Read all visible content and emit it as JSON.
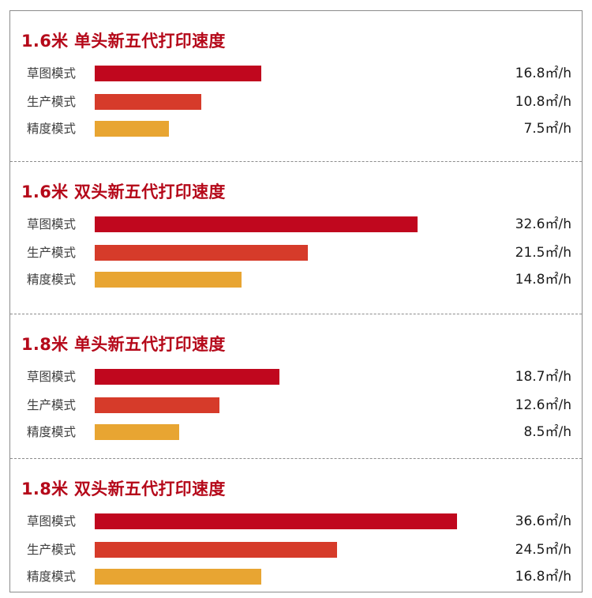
{
  "chart_data": [
    {
      "type": "bar",
      "orientation": "horizontal",
      "title": "1.6米 单头新五代打印速度",
      "categories": [
        "草图模式",
        "生产模式",
        "精度模式"
      ],
      "values": [
        16.8,
        10.8,
        7.5
      ],
      "value_labels": [
        "16.8㎡/h",
        "10.8㎡/h",
        "7.5㎡/h"
      ],
      "unit": "㎡/h"
    },
    {
      "type": "bar",
      "orientation": "horizontal",
      "title": "1.6米 双头新五代打印速度",
      "categories": [
        "草图模式",
        "生产模式",
        "精度模式"
      ],
      "values": [
        32.6,
        21.5,
        14.8
      ],
      "value_labels": [
        "32.6㎡/h",
        "21.5㎡/h",
        "14.8㎡/h"
      ],
      "unit": "㎡/h"
    },
    {
      "type": "bar",
      "orientation": "horizontal",
      "title": "1.8米 单头新五代打印速度",
      "categories": [
        "草图模式",
        "生产模式",
        "精度模式"
      ],
      "values": [
        18.7,
        12.6,
        8.5
      ],
      "value_labels": [
        "18.7㎡/h",
        "12.6㎡/h",
        "8.5㎡/h"
      ],
      "unit": "㎡/h"
    },
    {
      "type": "bar",
      "orientation": "horizontal",
      "title": "1.8米 双头新五代打印速度",
      "categories": [
        "草图模式",
        "生产模式",
        "精度模式"
      ],
      "values": [
        36.6,
        24.5,
        16.8
      ],
      "value_labels": [
        "36.6㎡/h",
        "24.5㎡/h",
        "16.8㎡/h"
      ],
      "unit": "㎡/h"
    }
  ],
  "colors": {
    "title": "#b5091a",
    "bars": [
      "#c0071e",
      "#d63b2a",
      "#e8a532"
    ]
  }
}
